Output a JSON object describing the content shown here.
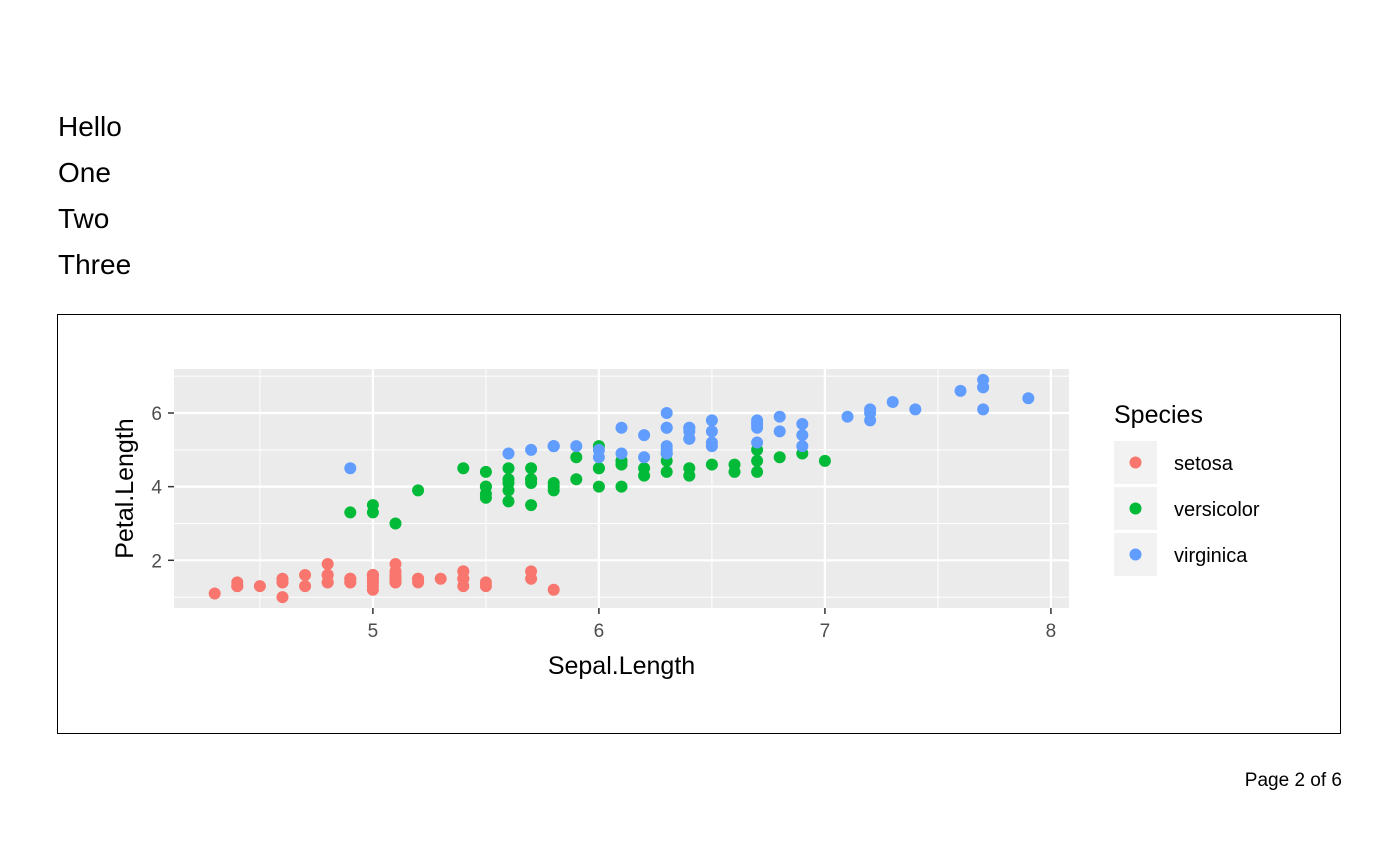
{
  "intro_lines": [
    "Hello",
    "One",
    "Two",
    "Three"
  ],
  "footer": {
    "page_label": "Page 2 of 6"
  },
  "colors": {
    "setosa": "#F8766D",
    "versicolor": "#00BA38",
    "virginica": "#619CFF",
    "panel_bg": "#EBEBEB",
    "grid": "#FFFFFF"
  },
  "chart_data": {
    "type": "scatter",
    "xlabel": "Sepal.Length",
    "ylabel": "Petal.Length",
    "xlim": [
      4.12,
      8.08
    ],
    "ylim": [
      0.705,
      7.195
    ],
    "x_ticks": [
      5,
      6,
      7,
      8
    ],
    "y_ticks": [
      2,
      4,
      6
    ],
    "x_tick_labels": [
      "5",
      "6",
      "7",
      "8"
    ],
    "y_tick_labels": [
      "2",
      "4",
      "6"
    ],
    "grid": true,
    "legend": {
      "title": "Species",
      "position": "right"
    },
    "series": [
      {
        "name": "setosa",
        "color": "#F8766D",
        "points": [
          [
            5.1,
            1.4
          ],
          [
            4.9,
            1.4
          ],
          [
            4.7,
            1.3
          ],
          [
            4.6,
            1.5
          ],
          [
            5.0,
            1.4
          ],
          [
            5.4,
            1.7
          ],
          [
            4.6,
            1.4
          ],
          [
            5.0,
            1.5
          ],
          [
            4.4,
            1.4
          ],
          [
            4.9,
            1.5
          ],
          [
            5.4,
            1.5
          ],
          [
            4.8,
            1.6
          ],
          [
            4.8,
            1.4
          ],
          [
            4.3,
            1.1
          ],
          [
            5.8,
            1.2
          ],
          [
            5.7,
            1.5
          ],
          [
            5.4,
            1.3
          ],
          [
            5.1,
            1.4
          ],
          [
            5.7,
            1.7
          ],
          [
            5.1,
            1.5
          ],
          [
            5.4,
            1.7
          ],
          [
            5.1,
            1.5
          ],
          [
            4.6,
            1.0
          ],
          [
            5.1,
            1.7
          ],
          [
            4.8,
            1.9
          ],
          [
            5.0,
            1.6
          ],
          [
            5.0,
            1.6
          ],
          [
            5.2,
            1.5
          ],
          [
            5.2,
            1.4
          ],
          [
            4.7,
            1.6
          ],
          [
            4.8,
            1.6
          ],
          [
            5.4,
            1.5
          ],
          [
            5.2,
            1.5
          ],
          [
            5.5,
            1.4
          ],
          [
            4.9,
            1.5
          ],
          [
            5.0,
            1.2
          ],
          [
            5.5,
            1.3
          ],
          [
            4.9,
            1.4
          ],
          [
            4.4,
            1.3
          ],
          [
            5.1,
            1.5
          ],
          [
            5.0,
            1.3
          ],
          [
            4.5,
            1.3
          ],
          [
            4.4,
            1.3
          ],
          [
            5.0,
            1.6
          ],
          [
            5.1,
            1.9
          ],
          [
            4.8,
            1.4
          ],
          [
            5.1,
            1.6
          ],
          [
            4.6,
            1.4
          ],
          [
            5.3,
            1.5
          ],
          [
            5.0,
            1.4
          ]
        ]
      },
      {
        "name": "versicolor",
        "color": "#00BA38",
        "points": [
          [
            7.0,
            4.7
          ],
          [
            6.4,
            4.5
          ],
          [
            6.9,
            4.9
          ],
          [
            5.5,
            4.0
          ],
          [
            6.5,
            4.6
          ],
          [
            5.7,
            4.5
          ],
          [
            6.3,
            4.7
          ],
          [
            4.9,
            3.3
          ],
          [
            6.6,
            4.6
          ],
          [
            5.2,
            3.9
          ],
          [
            5.0,
            3.5
          ],
          [
            5.9,
            4.2
          ],
          [
            6.0,
            4.0
          ],
          [
            6.1,
            4.7
          ],
          [
            5.6,
            3.6
          ],
          [
            6.7,
            4.4
          ],
          [
            5.6,
            4.5
          ],
          [
            5.8,
            4.1
          ],
          [
            6.2,
            4.5
          ],
          [
            5.6,
            3.9
          ],
          [
            5.9,
            4.8
          ],
          [
            6.1,
            4.0
          ],
          [
            6.3,
            4.9
          ],
          [
            6.1,
            4.7
          ],
          [
            6.4,
            4.3
          ],
          [
            6.6,
            4.4
          ],
          [
            6.8,
            4.8
          ],
          [
            6.7,
            5.0
          ],
          [
            6.0,
            4.5
          ],
          [
            5.7,
            3.5
          ],
          [
            5.5,
            3.8
          ],
          [
            5.5,
            3.7
          ],
          [
            5.8,
            3.9
          ],
          [
            6.0,
            5.1
          ],
          [
            5.4,
            4.5
          ],
          [
            6.0,
            4.5
          ],
          [
            6.7,
            4.7
          ],
          [
            6.3,
            4.4
          ],
          [
            5.6,
            4.1
          ],
          [
            5.5,
            4.0
          ],
          [
            5.5,
            4.4
          ],
          [
            6.1,
            4.6
          ],
          [
            5.8,
            4.0
          ],
          [
            5.0,
            3.3
          ],
          [
            5.6,
            4.2
          ],
          [
            5.7,
            4.2
          ],
          [
            5.7,
            4.2
          ],
          [
            6.2,
            4.3
          ],
          [
            5.1,
            3.0
          ],
          [
            5.7,
            4.1
          ]
        ]
      },
      {
        "name": "virginica",
        "color": "#619CFF",
        "points": [
          [
            6.3,
            6.0
          ],
          [
            5.8,
            5.1
          ],
          [
            7.1,
            5.9
          ],
          [
            6.3,
            5.6
          ],
          [
            6.5,
            5.8
          ],
          [
            7.6,
            6.6
          ],
          [
            4.9,
            4.5
          ],
          [
            7.3,
            6.3
          ],
          [
            6.7,
            5.8
          ],
          [
            7.2,
            6.1
          ],
          [
            6.5,
            5.1
          ],
          [
            6.4,
            5.3
          ],
          [
            6.8,
            5.5
          ],
          [
            5.7,
            5.0
          ],
          [
            5.8,
            5.1
          ],
          [
            6.4,
            5.3
          ],
          [
            6.5,
            5.5
          ],
          [
            7.7,
            6.7
          ],
          [
            7.7,
            6.9
          ],
          [
            6.0,
            5.0
          ],
          [
            6.9,
            5.7
          ],
          [
            5.6,
            4.9
          ],
          [
            7.7,
            6.7
          ],
          [
            6.3,
            4.9
          ],
          [
            6.7,
            5.7
          ],
          [
            7.2,
            6.0
          ],
          [
            6.2,
            4.8
          ],
          [
            6.1,
            4.9
          ],
          [
            6.4,
            5.6
          ],
          [
            7.2,
            5.8
          ],
          [
            7.4,
            6.1
          ],
          [
            7.9,
            6.4
          ],
          [
            6.4,
            5.6
          ],
          [
            6.3,
            5.1
          ],
          [
            6.1,
            5.6
          ],
          [
            7.7,
            6.1
          ],
          [
            6.3,
            5.6
          ],
          [
            6.4,
            5.5
          ],
          [
            6.0,
            4.8
          ],
          [
            6.9,
            5.4
          ],
          [
            6.7,
            5.6
          ],
          [
            6.9,
            5.1
          ],
          [
            5.8,
            5.1
          ],
          [
            6.8,
            5.9
          ],
          [
            6.7,
            5.7
          ],
          [
            6.7,
            5.2
          ],
          [
            6.3,
            5.0
          ],
          [
            6.5,
            5.2
          ],
          [
            6.2,
            5.4
          ],
          [
            5.9,
            5.1
          ]
        ]
      }
    ]
  }
}
